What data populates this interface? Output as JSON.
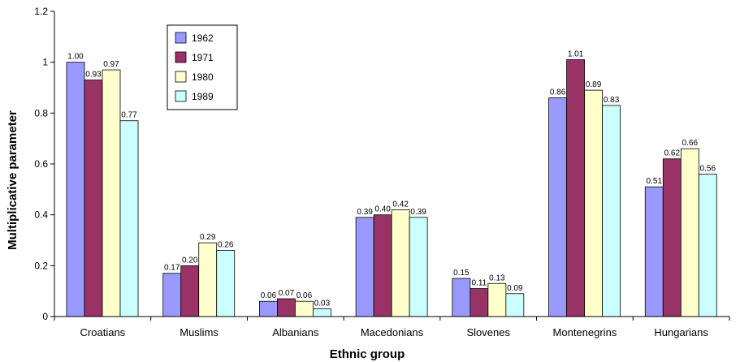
{
  "chart_data": {
    "type": "bar",
    "title": "",
    "xlabel": "Ethnic group",
    "ylabel": "Multiplicative parameter",
    "ylim": [
      0,
      1.2
    ],
    "yticks": [
      "0",
      "0.2",
      "0.4",
      "0.6",
      "0.8",
      "1",
      "1.2"
    ],
    "yticks_values": [
      0,
      0.2,
      0.4,
      0.6,
      0.8,
      1.0,
      1.2
    ],
    "grid": false,
    "legend_position": "top-left",
    "categories": [
      "Croatians",
      "Muslims",
      "Albanians",
      "Macedonians",
      "Slovenes",
      "Montenegrins",
      "Hungarians"
    ],
    "series": [
      {
        "name": "1962",
        "color": "#9999ff",
        "values": [
          1.0,
          0.17,
          0.06,
          0.39,
          0.15,
          0.86,
          0.51
        ],
        "labels": [
          "1.00",
          "0.17",
          "0.06",
          "0.39",
          "0.15",
          "0.86",
          "0.51"
        ]
      },
      {
        "name": "1971",
        "color": "#993366",
        "values": [
          0.93,
          0.2,
          0.07,
          0.4,
          0.11,
          1.01,
          0.62
        ],
        "labels": [
          "0.93",
          "0.20",
          "0.07",
          "0.40",
          "0.11",
          "1.01",
          "0.62"
        ]
      },
      {
        "name": "1980",
        "color": "#ffffcc",
        "values": [
          0.97,
          0.29,
          0.06,
          0.42,
          0.13,
          0.89,
          0.66
        ],
        "labels": [
          "0.97",
          "0.29",
          "0.06",
          "0.42",
          "0.13",
          "0.89",
          "0.66"
        ]
      },
      {
        "name": "1989",
        "color": "#ccffff",
        "values": [
          0.77,
          0.26,
          0.03,
          0.39,
          0.09,
          0.83,
          0.56
        ],
        "labels": [
          "0.77",
          "0.26",
          "0.03",
          "0.39",
          "0.09",
          "0.83",
          "0.56"
        ]
      }
    ]
  }
}
